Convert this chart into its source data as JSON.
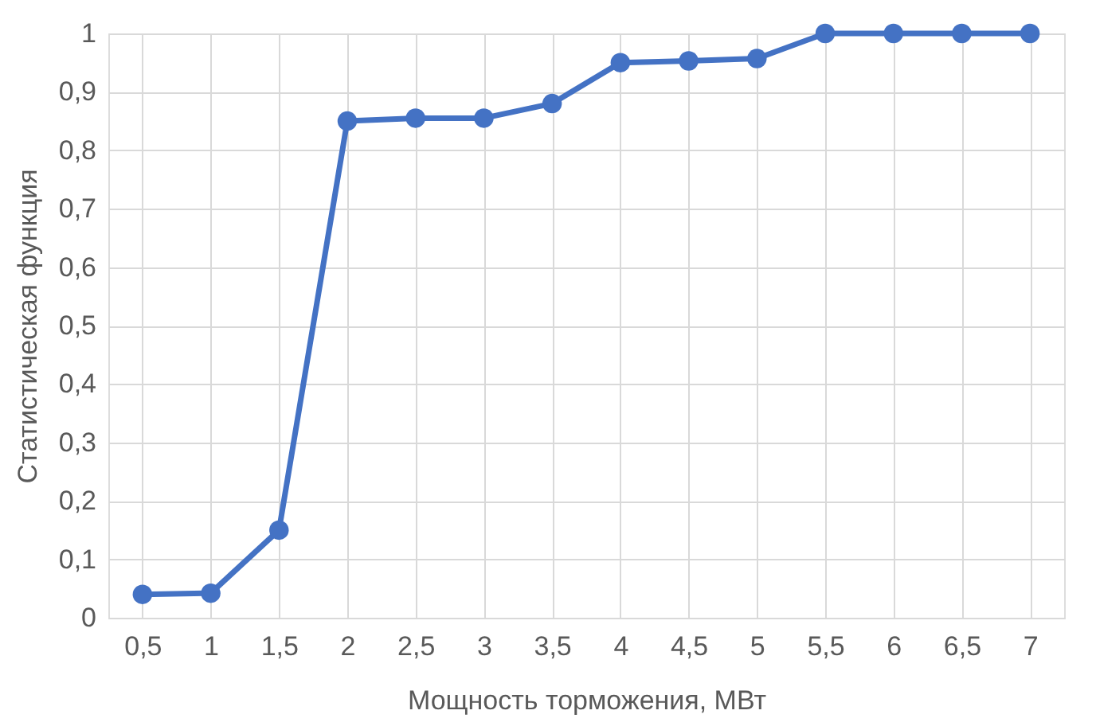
{
  "chart_data": {
    "type": "line",
    "xlabel": "Мощность торможения, МВт",
    "ylabel": "Статистическая функция",
    "categories": [
      "0,5",
      "1",
      "1,5",
      "2",
      "2,5",
      "3",
      "3,5",
      "4",
      "4,5",
      "5",
      "5,5",
      "6",
      "6,5",
      "7"
    ],
    "series": [
      {
        "color": "#4472c4",
        "values": [
          0.04,
          0.042,
          0.15,
          0.85,
          0.855,
          0.855,
          0.88,
          0.95,
          0.953,
          0.957,
          1,
          1,
          1,
          1
        ]
      }
    ],
    "ylim": [
      0,
      1
    ],
    "yticks": [
      0,
      {
        "value": 0.1,
        "label": "0,1"
      },
      {
        "value": 0.2,
        "label": "0,2"
      },
      {
        "value": 0.3,
        "label": "0,3"
      },
      {
        "value": 0.4,
        "label": "0,4"
      },
      {
        "value": 0.5,
        "label": "0,5"
      },
      {
        "value": 0.6,
        "label": "0,6"
      },
      {
        "value": 0.7,
        "label": "0,7"
      },
      {
        "value": 0.8,
        "label": "0,8"
      },
      {
        "value": 0.9,
        "label": "0,9"
      },
      1
    ],
    "grid": true,
    "marker": "circle",
    "line_style": "solid"
  }
}
